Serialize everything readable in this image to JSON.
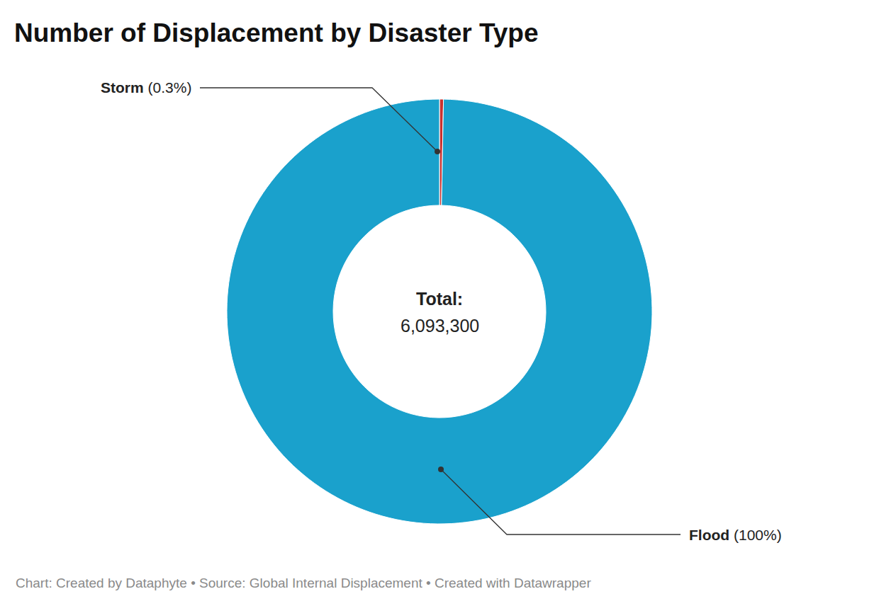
{
  "chart_data": {
    "type": "pie",
    "title": "Number of Displacement by Disaster Type",
    "categories": [
      "Storm",
      "Flood"
    ],
    "values": [
      0.3,
      100
    ],
    "value_labels": [
      "(0.3%)",
      "(100%)"
    ],
    "colors": [
      "#c8312f",
      "#1aa1cc"
    ],
    "data_labels": true,
    "annotations": [
      "Total:",
      "6,093,300"
    ],
    "source": "Chart: Created by Dataphyte • Source: Global Internal Displacement • Created with Datawrapper"
  }
}
